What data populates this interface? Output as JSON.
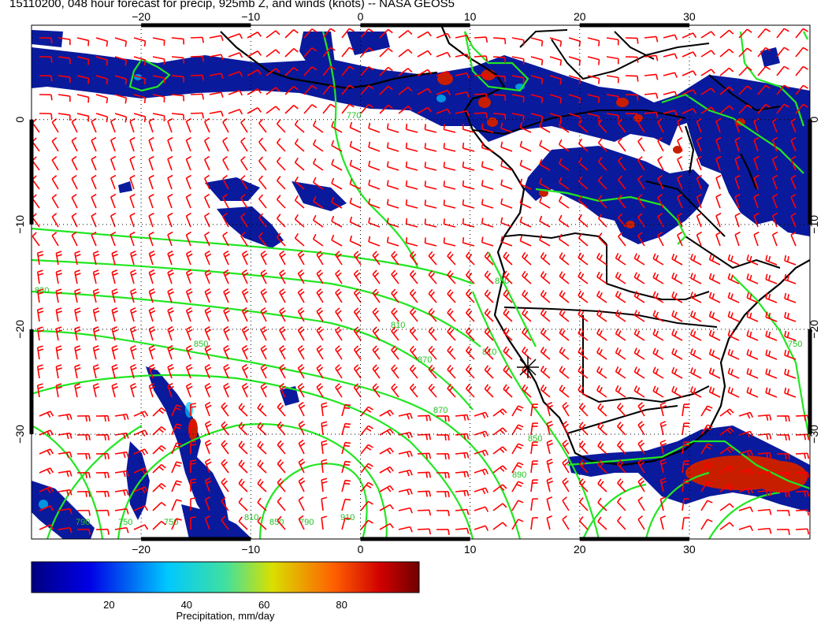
{
  "title": "15110200, 048 hour forecast for precip, 925mb Z, and winds (knots) -- NASA GEOS5",
  "map": {
    "lon_ticks": [
      -20,
      -10,
      0,
      10,
      20,
      30
    ],
    "lat_ticks": [
      0,
      -10,
      -20,
      -30
    ],
    "lon_tick_labels": [
      "−20",
      "−10",
      "0",
      "10",
      "20",
      "30"
    ],
    "lat_tick_labels": [
      "0",
      "−10",
      "−20",
      "−30"
    ],
    "lon_range": [
      -30,
      41
    ],
    "lat_range": [
      9,
      -40
    ],
    "grid": "dotted",
    "contour_labels": [
      "830",
      "850",
      "810",
      "870",
      "850",
      "890",
      "910",
      "870",
      "750",
      "750",
      "810",
      "850",
      "790",
      "770",
      "810",
      "850",
      "750",
      "790"
    ],
    "colors": {
      "precip_heavy": "#7a0000",
      "precip_light": "#000a8a",
      "contours": "#22e622",
      "wind_barbs": "#ff0000",
      "coastline": "#000000"
    }
  },
  "colorbar": {
    "ticks": [
      "20",
      "40",
      "60",
      "80"
    ],
    "label": "Precipitation, mm/day"
  }
}
